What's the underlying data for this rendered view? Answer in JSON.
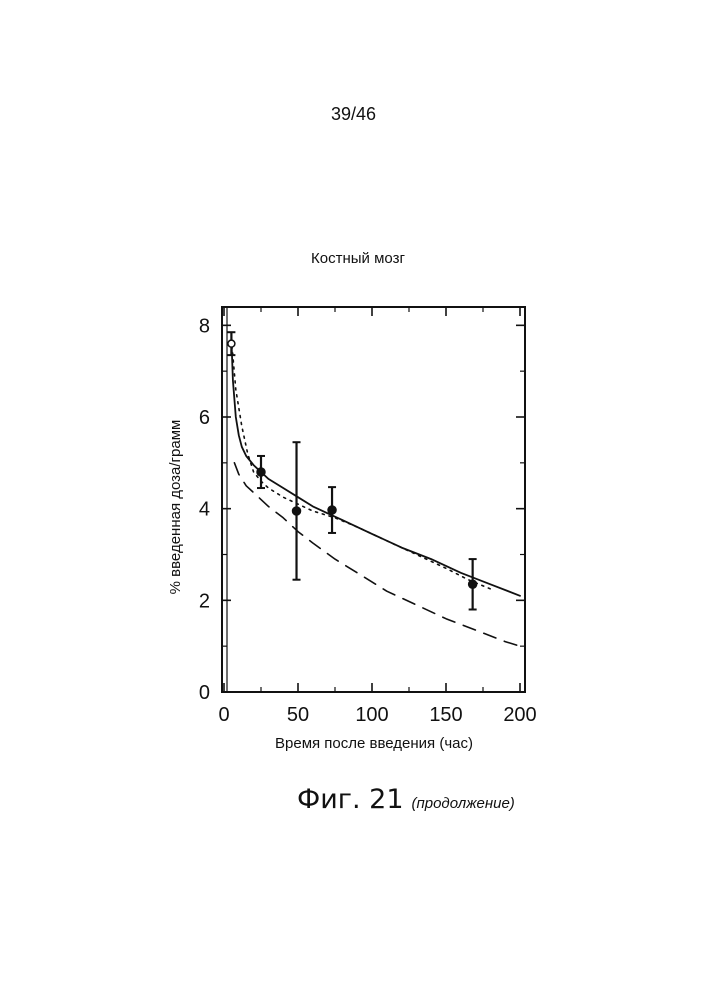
{
  "page": {
    "number": "39/46"
  },
  "caption": {
    "figure": "Фиг. 21",
    "note": "(продолжение)"
  },
  "chart_data": {
    "type": "line",
    "title": "Костный мозг",
    "xlabel": "Время после введения (час)",
    "ylabel": "% введенная доза/грамм",
    "xlim": [
      0,
      200
    ],
    "ylim": [
      0,
      8.4
    ],
    "x_ticks": [
      0,
      50,
      100,
      150,
      200
    ],
    "y_ticks": [
      0,
      2,
      4,
      6,
      8
    ],
    "grid": false,
    "legend": "none",
    "series": [
      {
        "style": "solid",
        "x": [
          5,
          6,
          8,
          10,
          12,
          15,
          20,
          25,
          30,
          40,
          50,
          60,
          70,
          80,
          100,
          120,
          140,
          160,
          180,
          200
        ],
        "y": [
          7.7,
          6.8,
          6.0,
          5.6,
          5.35,
          5.15,
          4.95,
          4.8,
          4.65,
          4.45,
          4.25,
          4.05,
          3.9,
          3.75,
          3.45,
          3.15,
          2.9,
          2.6,
          2.35,
          2.1
        ]
      },
      {
        "style": "dotted",
        "x": [
          5,
          8,
          12,
          16,
          20,
          25,
          30,
          40,
          50,
          60,
          75,
          90,
          110,
          130,
          150,
          165,
          180
        ],
        "y": [
          7.7,
          6.6,
          5.8,
          5.2,
          4.8,
          4.6,
          4.45,
          4.25,
          4.1,
          3.95,
          3.8,
          3.6,
          3.3,
          3.0,
          2.7,
          2.45,
          2.25
        ]
      },
      {
        "style": "dashed",
        "x": [
          7,
          10,
          15,
          20,
          30,
          40,
          50,
          60,
          75,
          90,
          110,
          130,
          150,
          170,
          190,
          200
        ],
        "y": [
          5.0,
          4.75,
          4.5,
          4.35,
          4.05,
          3.8,
          3.5,
          3.25,
          2.9,
          2.6,
          2.2,
          1.9,
          1.6,
          1.35,
          1.1,
          1.0
        ]
      }
    ],
    "measurements": [
      {
        "x": 5,
        "y": 7.6,
        "yerr": 0.25
      },
      {
        "x": 25,
        "y": 4.8,
        "yerr": 0.35
      },
      {
        "x": 49,
        "y": 3.95,
        "yerr": 1.5
      },
      {
        "x": 73,
        "y": 3.97,
        "yerr": 0.5
      },
      {
        "x": 168,
        "y": 2.35,
        "yerr": 0.55
      }
    ]
  }
}
